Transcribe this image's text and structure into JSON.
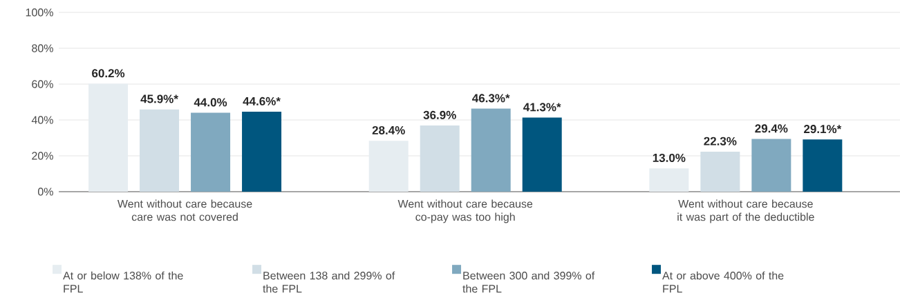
{
  "chart_data": {
    "type": "bar",
    "categories": [
      "Went without care because care was not covered",
      "Went without care because co-pay was too high",
      "Went without care because it was part of the deductible"
    ],
    "series": [
      {
        "name": "At or below 138% of the FPL",
        "color": "#e6edf1",
        "values": [
          60.2,
          28.4,
          13.0
        ],
        "value_labels": [
          "60.2%",
          "28.4%",
          "13.0%"
        ]
      },
      {
        "name": "Between 138 and 299% of the FPL",
        "color": "#d1dee6",
        "values": [
          45.9,
          36.9,
          22.3
        ],
        "value_labels": [
          "45.9%*",
          "36.9%",
          "22.3%"
        ]
      },
      {
        "name": "Between 300 and 399% of the FPL",
        "color": "#80a9bf",
        "values": [
          44.0,
          46.3,
          29.4
        ],
        "value_labels": [
          "44.0%",
          "46.3%*",
          "29.4%"
        ]
      },
      {
        "name": "At or above 400% of the FPL",
        "color": "#00567f",
        "values": [
          44.6,
          41.3,
          29.1
        ],
        "value_labels": [
          "44.6%*",
          "41.3%*",
          "29.1%*"
        ]
      }
    ],
    "ylim": [
      0,
      100
    ],
    "yticks": [
      {
        "value": 0,
        "label": "0%"
      },
      {
        "value": 20,
        "label": "20%"
      },
      {
        "value": 40,
        "label": "40%"
      },
      {
        "value": 60,
        "label": "60%"
      },
      {
        "value": 80,
        "label": "80%"
      },
      {
        "value": 100,
        "label": "100%"
      }
    ],
    "grid": "y",
    "legend": "bottom"
  }
}
